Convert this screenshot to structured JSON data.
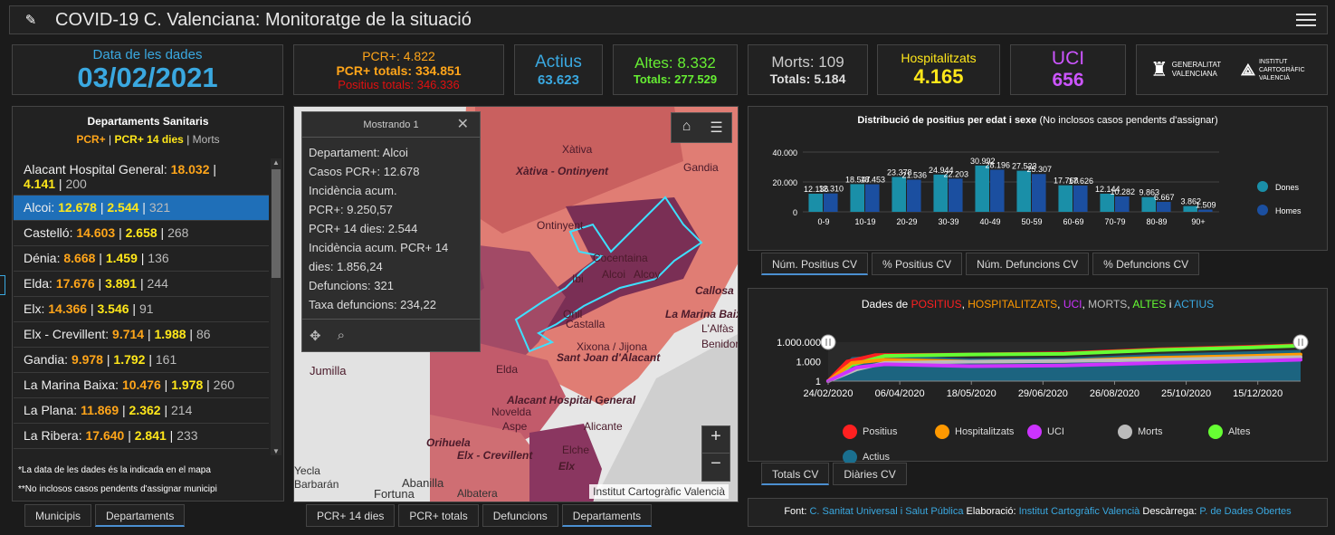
{
  "header": {
    "title": "COVID-19 C. Valenciana: Monitoratge de la situació"
  },
  "kpis": {
    "date_label": "Data de les dades",
    "date_value": "03/02/2021",
    "pcr": "PCR+: 4.822",
    "pcr_total": "PCR+ totals: 334.851",
    "pos_total": "Positius totals: 346.336",
    "actius_label": "Actius",
    "actius_value": "63.623",
    "altes": "Altes: 8.332",
    "altes_total": "Totals: 277.529",
    "morts": "Morts: 109",
    "morts_total": "Totals: 5.184",
    "hosp_label": "Hospitalitzats",
    "hosp_value": "4.165",
    "uci_label": "UCI",
    "uci_value": "656",
    "logo1": "GENERALITAT VALENCIANA",
    "logo2": "INSTITUT CARTOGRÀFIC VALENCIÀ"
  },
  "departments": {
    "title": "Departaments Sanitaris",
    "legend_a": "PCR+",
    "legend_b": "PCR+ 14 dies",
    "legend_c": "Morts",
    "items": [
      {
        "name": "Alacant Hospital General:",
        "a": "18.032",
        "b": "4.141",
        "c": "200"
      },
      {
        "name": "Alcoi:",
        "a": "12.678",
        "b": "2.544",
        "c": "321"
      },
      {
        "name": "Castelló:",
        "a": "14.603",
        "b": "2.658",
        "c": "268"
      },
      {
        "name": "Dénia:",
        "a": "8.668",
        "b": "1.459",
        "c": "136"
      },
      {
        "name": "Elda:",
        "a": "17.676",
        "b": "3.891",
        "c": "244"
      },
      {
        "name": "Elx:",
        "a": "14.366",
        "b": "3.546",
        "c": "91"
      },
      {
        "name": "Elx - Crevillent:",
        "a": "9.714",
        "b": "1.988",
        "c": "86"
      },
      {
        "name": "Gandia:",
        "a": "9.978",
        "b": "1.792",
        "c": "161"
      },
      {
        "name": "La Marina Baixa:",
        "a": "10.476",
        "b": "1.978",
        "c": "260"
      },
      {
        "name": "La Plana:",
        "a": "11.869",
        "b": "2.362",
        "c": "214"
      },
      {
        "name": "La Ribera:",
        "a": "17.640",
        "b": "2.841",
        "c": "233"
      }
    ],
    "note1": "*La data de les dades és la indicada en el mapa",
    "note2": "**No inclosos casos pendents d'assignar municipi",
    "tabs": [
      "Municipis",
      "Departaments"
    ]
  },
  "popup": {
    "title": "Mostrando 1",
    "lines": [
      "Departament: Alcoi",
      "Casos PCR+: 12.678",
      "Incidència acum.",
      "PCR+: 9.250,57",
      "PCR+ 14 dies: 2.544",
      "Incidència acum. PCR+ 14",
      "dies: 1.856,24",
      "Defuncions: 321",
      "Taxa defuncions: 234,22"
    ]
  },
  "map": {
    "attribution": "Institut Cartogràfic Valencià",
    "labels": [
      "Xàtiva",
      "Xàtiva - Ontinyent",
      "Gandia",
      "Ontinyent",
      "Cocentaina",
      "Alcoi",
      "Alcoy",
      "Callosa",
      "La Marina Baixa",
      "L'Alfàs",
      "Benidorm",
      "Ibi",
      "Onil",
      "Castalla",
      "Xixona / Jijona",
      "Sant Joan d'Alacant",
      "Jumilla",
      "Elda",
      "Alacant Hospital General",
      "Novelda",
      "Aspe",
      "Alicante",
      "Orihuela",
      "Elx - Crevillent",
      "Elche",
      "Elx",
      "Abanilla",
      "Fortuna",
      "Albatera",
      "Yecla",
      "Barbarán"
    ],
    "tabs": [
      "PCR+ 14 dies",
      "PCR+ totals",
      "Defuncions",
      "Departaments"
    ]
  },
  "chart_data": [
    {
      "type": "bar",
      "title": "Distribució de positius per edat i sexe",
      "subtitle": "(No inclosos casos pendents d'assignar)",
      "categories": [
        "0-9",
        "10-19",
        "20-29",
        "30-39",
        "40-49",
        "50-59",
        "60-69",
        "70-79",
        "80-89",
        "90+"
      ],
      "series": [
        {
          "name": "Dones",
          "color": "#1a8fa8",
          "values": [
            12136,
            18547,
            23378,
            24944,
            30992,
            27523,
            17768,
            12144,
            9863,
            3862
          ]
        },
        {
          "name": "Homes",
          "color": "#1b4fa0",
          "values": [
            12310,
            18453,
            21536,
            22203,
            28196,
            25307,
            17626,
            10282,
            6667,
            1509
          ]
        }
      ],
      "value_labels": {
        "Dones": [
          "12.136",
          "18.547",
          "23.378",
          "24.944",
          "30.992",
          "27.523",
          "17.768",
          "12.144",
          "9.863",
          "3.862"
        ],
        "Homes": [
          "12.310",
          "18.453",
          "21.536",
          "22.203",
          "28.196",
          "25.307",
          "17.626",
          "10.282",
          "6.667",
          "1.509"
        ]
      },
      "yticks": [
        "40.000",
        "20.000",
        "0"
      ],
      "ylim": [
        0,
        40000
      ],
      "tabs": [
        "Núm. Positius CV",
        "% Positius CV",
        "Núm. Defuncions CV",
        "% Defuncions CV"
      ]
    },
    {
      "type": "line",
      "title_parts": [
        {
          "t": "Dades de ",
          "c": "#ffffff"
        },
        {
          "t": "POSITIUS",
          "c": "#ff2020"
        },
        {
          "t": ", ",
          "c": "#ffffff"
        },
        {
          "t": "HOSPITALITZATS",
          "c": "#ff9900"
        },
        {
          "t": ", ",
          "c": "#ffffff"
        },
        {
          "t": "UCI",
          "c": "#cc33ff"
        },
        {
          "t": ", ",
          "c": "#ffffff"
        },
        {
          "t": "MORTS",
          "c": "#bbbbbb"
        },
        {
          "t": ", ",
          "c": "#ffffff"
        },
        {
          "t": "ALTES",
          "c": "#66ff33"
        },
        {
          "t": " i ",
          "c": "#ffffff"
        },
        {
          "t": "ACTIUS",
          "c": "#3aa8e0"
        }
      ],
      "yscale": "log",
      "yticks": [
        "1.000.000",
        "1.000",
        "1"
      ],
      "xticks": [
        "24/02/2020",
        "06/04/2020",
        "18/05/2020",
        "29/06/2020",
        "26/08/2020",
        "25/10/2020",
        "15/12/2020"
      ],
      "series": [
        {
          "name": "Positius",
          "color": "#ff2020"
        },
        {
          "name": "Hospitalitzats",
          "color": "#ff9900"
        },
        {
          "name": "UCI",
          "color": "#cc33ff"
        },
        {
          "name": "Morts",
          "color": "#bbbbbb"
        },
        {
          "name": "Altes",
          "color": "#66ff33"
        },
        {
          "name": "Actius",
          "color": "#1a6f8f"
        }
      ],
      "tabs": [
        "Totals CV",
        "Diàries CV"
      ]
    }
  ],
  "footer": {
    "font_label": "Font:",
    "font_value": "C. Sanitat Universal i Salut Pública",
    "elab_label": "Elaboració:",
    "elab_value": "Institut Cartogràfic Valencià",
    "desc_label": "Descàrrega:",
    "desc_value": "P. de Dades Obertes"
  }
}
